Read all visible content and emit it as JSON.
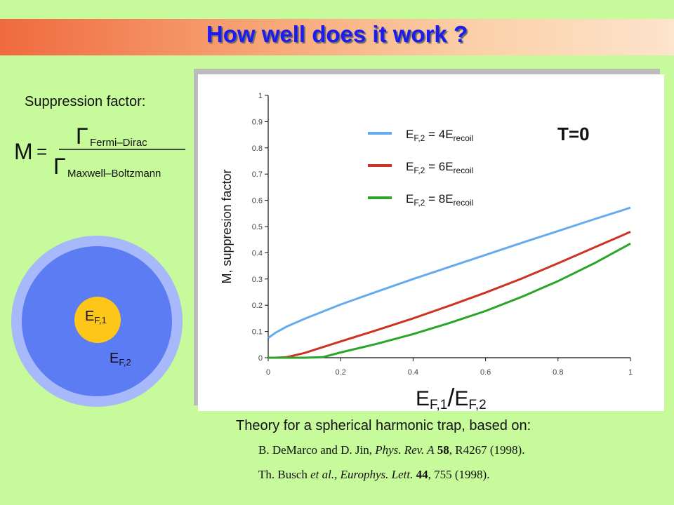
{
  "title": "How well does it work ?",
  "suppression_label": "Suppression factor:",
  "formula": {
    "lhs": "M",
    "numerator_symbol": "Γ",
    "numerator_subscript": "Fermi–Dirac",
    "denominator_symbol": "Γ",
    "denominator_subscript": "Maxwell–Boltzmann"
  },
  "diagram": {
    "inner_label": "E",
    "inner_sub": "F,1",
    "outer_label": "E",
    "outer_sub": "F,2",
    "colors": {
      "outer_ring": "#a7b8fb",
      "mid": "#5c7cf3",
      "inner": "#ffc61a"
    }
  },
  "chart_data": {
    "type": "line",
    "annotation": "T=0",
    "xlabel": "E_F,1/E_F,2",
    "ylabel": "M, suppresion factor",
    "xlim": [
      0,
      1
    ],
    "ylim": [
      0,
      1
    ],
    "x_ticks": [
      "0",
      "0.2",
      "0.4",
      "0.6",
      "0.8",
      "1"
    ],
    "y_ticks": [
      "0",
      "0.1",
      "0.2",
      "0.3",
      "0.4",
      "0.5",
      "0.6",
      "0.7",
      "0.8",
      "0.9",
      "1"
    ],
    "grid": false,
    "legend_position": "top-left",
    "series": [
      {
        "name": "E_F,2 = 4E_recoil",
        "label_base": "E",
        "label_sub": "F,2",
        "label_mid": " = 4E",
        "label_sub2": "recoil",
        "color": "#66aaf0",
        "x": [
          0,
          0.02,
          0.05,
          0.1,
          0.2,
          0.3,
          0.4,
          0.5,
          0.6,
          0.7,
          0.8,
          0.9,
          1.0
        ],
        "y": [
          0.075,
          0.095,
          0.118,
          0.148,
          0.203,
          0.252,
          0.3,
          0.346,
          0.392,
          0.438,
          0.483,
          0.528,
          0.572
        ]
      },
      {
        "name": "E_F,2 = 6E_recoil",
        "label_base": "E",
        "label_sub": "F,2",
        "label_mid": " = 6E",
        "label_sub2": "recoil",
        "color": "#cc3322",
        "x": [
          0,
          0.02,
          0.05,
          0.1,
          0.2,
          0.3,
          0.4,
          0.5,
          0.6,
          0.7,
          0.8,
          0.9,
          1.0
        ],
        "y": [
          0,
          0.0,
          0.002,
          0.018,
          0.062,
          0.105,
          0.15,
          0.198,
          0.248,
          0.302,
          0.36,
          0.42,
          0.48
        ]
      },
      {
        "name": "E_F,2 = 8E_recoil",
        "label_base": "E",
        "label_sub": "F,2",
        "label_mid": " = 8E",
        "label_sub2": "recoil",
        "color": "#2aa52a",
        "x": [
          0,
          0.05,
          0.1,
          0.15,
          0.2,
          0.3,
          0.4,
          0.5,
          0.6,
          0.7,
          0.8,
          0.9,
          1.0
        ],
        "y": [
          0,
          0,
          0,
          0.002,
          0.02,
          0.053,
          0.09,
          0.132,
          0.178,
          0.232,
          0.292,
          0.36,
          0.435
        ]
      }
    ]
  },
  "theory_text": "Theory for a spherical harmonic trap, based on:",
  "references": [
    {
      "authors": "B. DeMarco and D. Jin, ",
      "journal": "Phys. Rev. A",
      "volume": "58",
      "rest": ", R4267 (1998)."
    },
    {
      "authors": "Th. Busch ",
      "etal": "et al.",
      "sep": ", ",
      "journal": "Europhys. Lett.",
      "volume": "44",
      "rest": ", 755 (1998)."
    }
  ]
}
